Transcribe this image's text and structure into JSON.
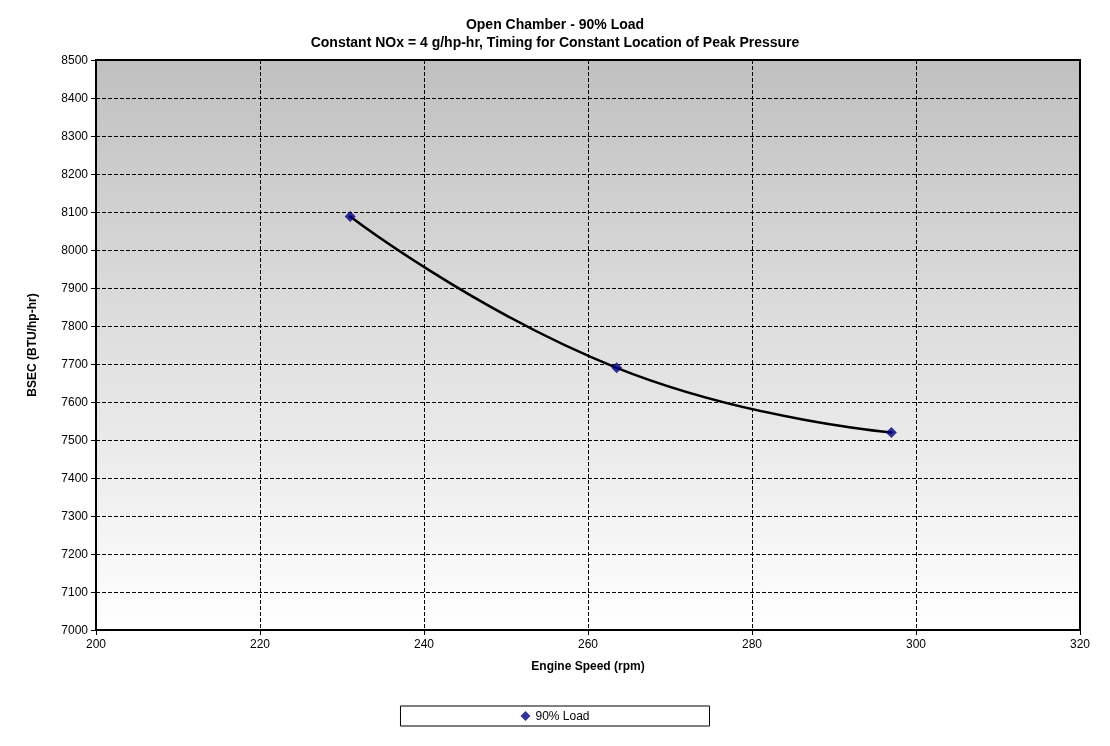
{
  "chart_data": {
    "type": "scatter",
    "title": "Open Chamber - 90% Load",
    "subtitle": "Constant NOx = 4 g/hp-hr, Timing for Constant Location of Peak Pressure",
    "xlabel": "Engine Speed (rpm)",
    "ylabel": "BSEC (BTU/hp-hr)",
    "series": [
      {
        "name": "90% Load",
        "color": "#000080",
        "x": [
          231,
          263.5,
          297
        ],
        "values": [
          8088,
          7690,
          7520
        ],
        "marker": "diamond"
      },
      {
        "type": "line",
        "color": "#000000",
        "x": [
          231,
          263.5,
          297
        ],
        "values": [
          8088,
          7690,
          7520
        ],
        "marker": "none",
        "line_style": "solid"
      }
    ],
    "xlim": [
      200,
      320
    ],
    "xticks": [
      200,
      220,
      240,
      260,
      280,
      300,
      320
    ],
    "ylim": [
      7000,
      8500
    ],
    "yticks": [
      7000,
      7100,
      7200,
      7300,
      7400,
      7500,
      7600,
      7700,
      7800,
      7900,
      8000,
      8100,
      8200,
      8300,
      8400,
      8500
    ],
    "grid": true,
    "legend": "bottom"
  }
}
